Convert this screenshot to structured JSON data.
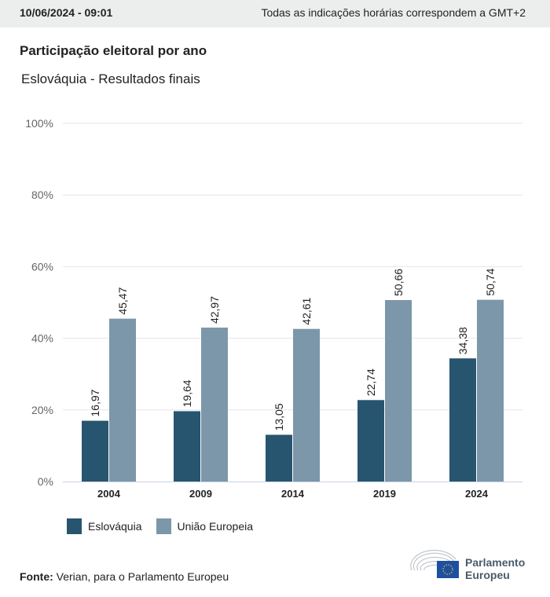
{
  "header": {
    "datetime": "10/06/2024 - 09:01",
    "timezone_note": "Todas as indicações horárias correspondem a GMT+2"
  },
  "title": "Participação eleitoral por ano",
  "subtitle": "Eslováquia - Resultados finais",
  "colors": {
    "slovakia": "#27556f",
    "eu": "#7b97a9",
    "grid": "#e4e6ea",
    "axis": "#c9d3e6"
  },
  "legend": [
    {
      "label": "Eslováquia",
      "color": "#27556f"
    },
    {
      "label": "União Europeia",
      "color": "#7b97a9"
    }
  ],
  "source": {
    "label": "Fonte:",
    "text": "Verian, para o Parlamento Europeu"
  },
  "logo": {
    "line1": "Parlamento",
    "line2": "Europeu"
  },
  "chart_data": {
    "type": "bar",
    "categories": [
      "2004",
      "2009",
      "2014",
      "2019",
      "2024"
    ],
    "series": [
      {
        "name": "Eslováquia",
        "values": [
          16.97,
          19.64,
          13.05,
          22.74,
          34.38
        ],
        "labels": [
          "16,97",
          "19,64",
          "13,05",
          "22,74",
          "34,38"
        ]
      },
      {
        "name": "União Europeia",
        "values": [
          45.47,
          42.97,
          42.61,
          50.66,
          50.74
        ],
        "labels": [
          "45,47",
          "42,97",
          "42,61",
          "50,66",
          "50,74"
        ]
      }
    ],
    "yticks": [
      0,
      20,
      40,
      60,
      80,
      100
    ],
    "ytick_labels": [
      "0%",
      "20%",
      "40%",
      "60%",
      "80%",
      "100%"
    ],
    "ylim": [
      0,
      100
    ],
    "grid": true,
    "legend_position": "bottom-left",
    "title": "Participação eleitoral por ano",
    "xlabel": "",
    "ylabel": ""
  }
}
